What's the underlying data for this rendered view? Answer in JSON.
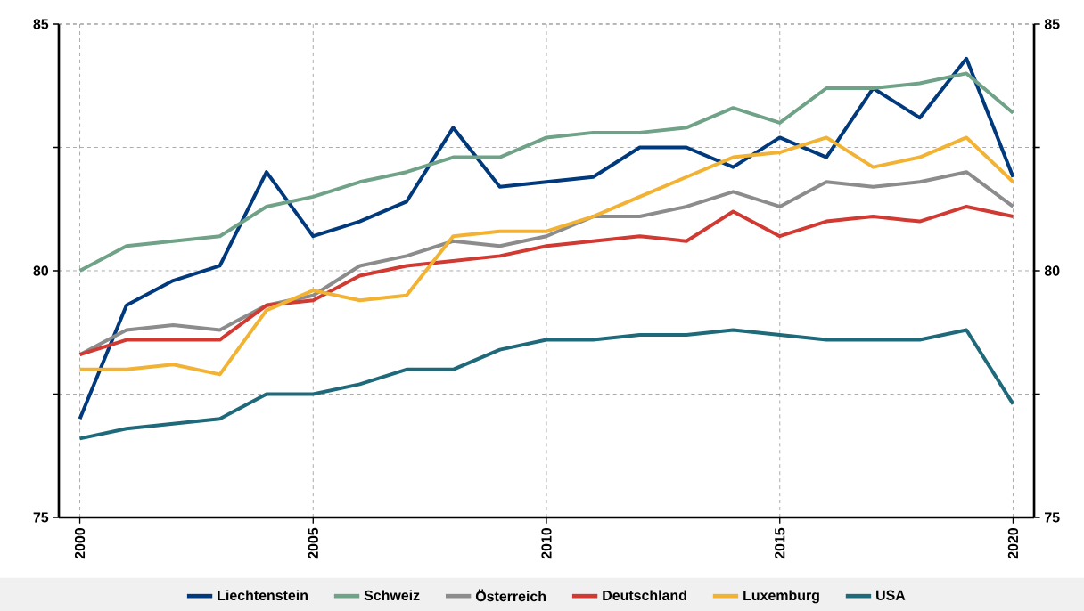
{
  "chart_data": {
    "type": "line",
    "x": [
      2000,
      2001,
      2002,
      2003,
      2004,
      2005,
      2006,
      2007,
      2008,
      2009,
      2010,
      2011,
      2012,
      2013,
      2014,
      2015,
      2016,
      2017,
      2018,
      2019,
      2020
    ],
    "series": [
      {
        "name": "Liechtenstein",
        "color": "#003a7d",
        "values": [
          77.0,
          79.3,
          79.8,
          80.1,
          82.0,
          80.7,
          81.0,
          81.4,
          82.9,
          81.7,
          81.8,
          81.9,
          82.5,
          82.5,
          82.1,
          82.7,
          82.3,
          83.7,
          83.1,
          84.3,
          81.9
        ]
      },
      {
        "name": "Schweiz",
        "color": "#6fa287",
        "values": [
          80.0,
          80.5,
          80.6,
          80.7,
          81.3,
          81.5,
          81.8,
          82.0,
          82.3,
          82.3,
          82.7,
          82.8,
          82.8,
          82.9,
          83.3,
          83.0,
          83.7,
          83.7,
          83.8,
          84.0,
          83.2
        ]
      },
      {
        "name": "Österreich",
        "color": "#8c8c8c",
        "values": [
          78.3,
          78.8,
          78.9,
          78.8,
          79.3,
          79.5,
          80.1,
          80.3,
          80.6,
          80.5,
          80.7,
          81.1,
          81.1,
          81.3,
          81.6,
          81.3,
          81.8,
          81.7,
          81.8,
          82.0,
          81.3
        ]
      },
      {
        "name": "Deutschland",
        "color": "#d03a32",
        "values": [
          78.3,
          78.6,
          78.6,
          78.6,
          79.3,
          79.4,
          79.9,
          80.1,
          80.2,
          80.3,
          80.5,
          80.6,
          80.7,
          80.6,
          81.2,
          80.7,
          81.0,
          81.1,
          81.0,
          81.3,
          81.1
        ]
      },
      {
        "name": "Luxemburg",
        "color": "#f2b233",
        "values": [
          78.0,
          78.0,
          78.1,
          77.9,
          79.2,
          79.6,
          79.4,
          79.5,
          80.7,
          80.8,
          80.8,
          81.1,
          81.5,
          81.9,
          82.3,
          82.4,
          82.7,
          82.1,
          82.3,
          82.7,
          81.8
        ]
      },
      {
        "name": "USA",
        "color": "#1f6a7a",
        "values": [
          76.6,
          76.8,
          76.9,
          77.0,
          77.5,
          77.5,
          77.7,
          78.0,
          78.0,
          78.4,
          78.6,
          78.6,
          78.7,
          78.7,
          78.8,
          78.7,
          78.6,
          78.6,
          78.6,
          78.8,
          77.3
        ]
      }
    ],
    "xlim": [
      1999.55,
      2020.45
    ],
    "xticks": [
      2000,
      2005,
      2010,
      2015,
      2020
    ],
    "ylim": [
      75,
      85
    ],
    "yticks": [
      75,
      {
        "value": 77.5,
        "label": null
      },
      80,
      {
        "value": 82.5,
        "label": null
      },
      85
    ],
    "y2lim": [
      75,
      85
    ],
    "y2ticks": [
      75,
      {
        "value": 77.5,
        "label": null
      },
      80,
      {
        "value": 82.5,
        "label": null
      },
      85
    ],
    "grid": true,
    "legend": "bottom",
    "marker": "none",
    "line_style": "solid"
  }
}
